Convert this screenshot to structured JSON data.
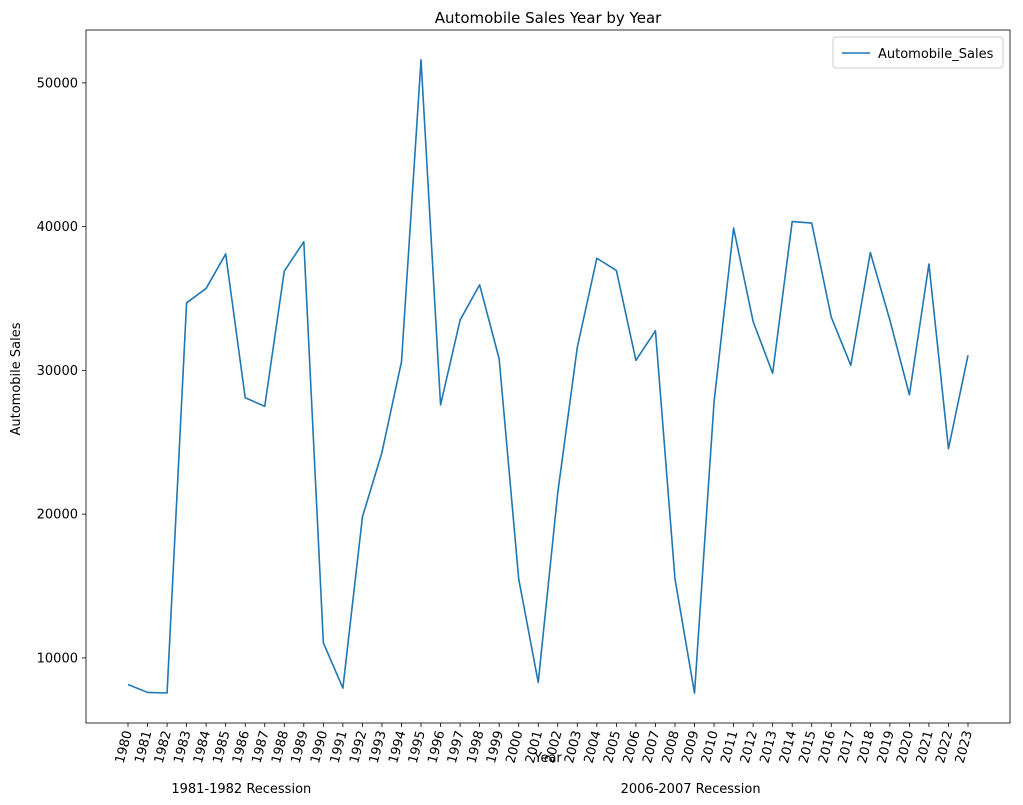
{
  "chart_data": {
    "type": "line",
    "title": "Automobile Sales Year by Year",
    "xlabel": "Year",
    "ylabel": "Automobile Sales",
    "x": [
      1980,
      1981,
      1982,
      1983,
      1984,
      1985,
      1986,
      1987,
      1988,
      1989,
      1990,
      1991,
      1992,
      1993,
      1994,
      1995,
      1996,
      1997,
      1998,
      1999,
      2000,
      2001,
      2002,
      2003,
      2004,
      2005,
      2006,
      2007,
      2008,
      2009,
      2010,
      2011,
      2012,
      2013,
      2014,
      2015,
      2016,
      2017,
      2018,
      2019,
      2020,
      2021,
      2022,
      2023
    ],
    "series": [
      {
        "name": "Automobile_Sales",
        "color": "#1f77b4",
        "values": [
          8150,
          7600,
          7560,
          34700,
          35700,
          38100,
          28100,
          27500,
          36900,
          38950,
          11050,
          7900,
          19800,
          24300,
          30600,
          51600,
          27600,
          33500,
          35950,
          30800,
          15500,
          8300,
          21500,
          31600,
          37800,
          36950,
          30700,
          32750,
          15500,
          7550,
          27800,
          39900,
          33400,
          29800,
          40350,
          40250,
          33700,
          30350,
          38200,
          33500,
          28300,
          37400,
          24550,
          31050
        ]
      }
    ],
    "yticks": [
      10000,
      20000,
      30000,
      40000,
      50000
    ],
    "ylim": [
      5474,
      53676
    ],
    "xlim": [
      1977.85,
      2025.15
    ],
    "grid": false,
    "legend": "top-right",
    "annotations": [
      {
        "text": "1981-1982 Recession",
        "x": 1985.8
      },
      {
        "text": "2006-2007 Recession",
        "x": 2008.8
      }
    ]
  }
}
